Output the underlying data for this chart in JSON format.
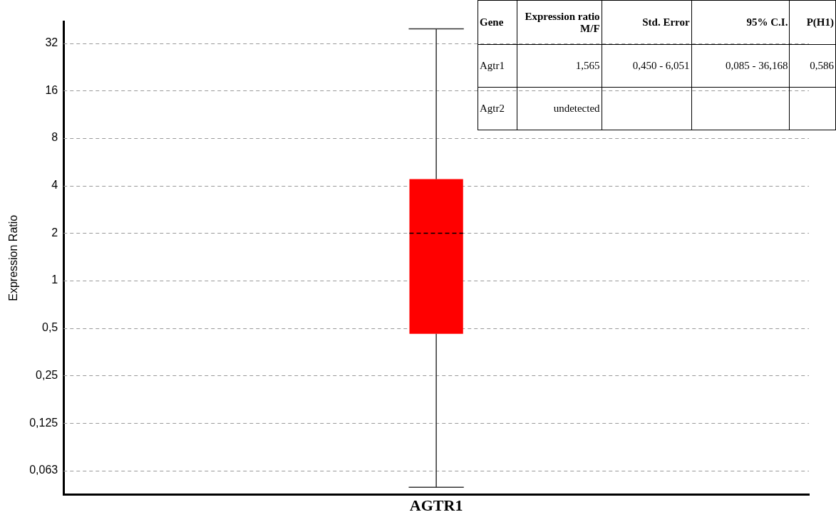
{
  "chart_data": {
    "type": "box",
    "ylabel": "Expression Ratio",
    "categories": [
      "AGTR1"
    ],
    "series": [
      {
        "color": "#ff0000",
        "boxes": [
          {
            "low": 0.049,
            "q1": 0.46,
            "median": 2,
            "q3": 4.4,
            "high": 39.5
          }
        ]
      }
    ],
    "log": true,
    "grid": "y",
    "ylim": [
      0.044,
      44
    ],
    "yticks": [
      {
        "value": 0.0625,
        "label": "0,063"
      },
      {
        "value": 0.125,
        "label": "0,125"
      },
      {
        "value": 0.25,
        "label": "0,25"
      },
      {
        "value": 0.5,
        "label": "0,5"
      },
      1,
      2,
      4,
      8,
      16,
      32
    ],
    "annotations": [
      "Gene",
      "Expression ratio M/F",
      "Std. Error",
      "95% C.I.",
      "P(H1)",
      "Agtr1",
      "1,565",
      "0,450 - 6,051",
      "0,085 - 36,168",
      "0,586",
      "Agtr2",
      "undetected"
    ]
  }
}
